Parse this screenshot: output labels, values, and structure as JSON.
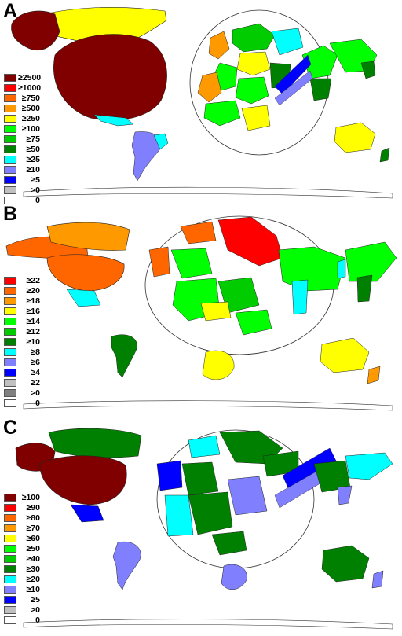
{
  "panels": [
    {
      "letter": "A",
      "legend": [
        {
          "label": "≥2500",
          "color": "#800000"
        },
        {
          "label": "≥1000",
          "color": "#ff0000"
        },
        {
          "label": "≥750",
          "color": "#ff6600"
        },
        {
          "label": "≥500",
          "color": "#ff9900"
        },
        {
          "label": "≥250",
          "color": "#ffff00"
        },
        {
          "label": "≥100",
          "color": "#00ff00"
        },
        {
          "label": "≥75",
          "color": "#00cc00"
        },
        {
          "label": "≥50",
          "color": "#008000"
        },
        {
          "label": "≥25",
          "color": "#00ffff"
        },
        {
          "label": "≥10",
          "color": "#8080ff"
        },
        {
          "label": "≥5",
          "color": "#0000ff"
        },
        {
          "label": ">0",
          "color": "#c0c0c0"
        },
        {
          "label": "0",
          "color": "#ffffff"
        }
      ]
    },
    {
      "letter": "B",
      "legend": [
        {
          "label": "≥22",
          "color": "#ff0000"
        },
        {
          "label": "≥20",
          "color": "#ff6600"
        },
        {
          "label": "≥18",
          "color": "#ff9900"
        },
        {
          "label": "≥16",
          "color": "#ffff00"
        },
        {
          "label": "≥14",
          "color": "#00ff00"
        },
        {
          "label": "≥12",
          "color": "#00cc00"
        },
        {
          "label": "≥10",
          "color": "#008000"
        },
        {
          "label": "≥8",
          "color": "#00ffff"
        },
        {
          "label": "≥6",
          "color": "#8080ff"
        },
        {
          "label": "≥4",
          "color": "#0000ff"
        },
        {
          "label": "≥2",
          "color": "#c0c0c0"
        },
        {
          "label": ">0",
          "color": "#808080"
        },
        {
          "label": "0",
          "color": "#ffffff"
        }
      ]
    },
    {
      "letter": "C",
      "legend": [
        {
          "label": "≥100",
          "color": "#800000"
        },
        {
          "label": "≥90",
          "color": "#ff0000"
        },
        {
          "label": "≥80",
          "color": "#ff6600"
        },
        {
          "label": "≥70",
          "color": "#ff9900"
        },
        {
          "label": "≥60",
          "color": "#ffff00"
        },
        {
          "label": "≥50",
          "color": "#00ff00"
        },
        {
          "label": "≥40",
          "color": "#00cc00"
        },
        {
          "label": "≥30",
          "color": "#008000"
        },
        {
          "label": "≥20",
          "color": "#00ffff"
        },
        {
          "label": "≥10",
          "color": "#8080ff"
        },
        {
          "label": "≥5",
          "color": "#0000ff"
        },
        {
          "label": ">0",
          "color": "#c0c0c0"
        },
        {
          "label": "0",
          "color": "#ffffff"
        }
      ]
    }
  ]
}
